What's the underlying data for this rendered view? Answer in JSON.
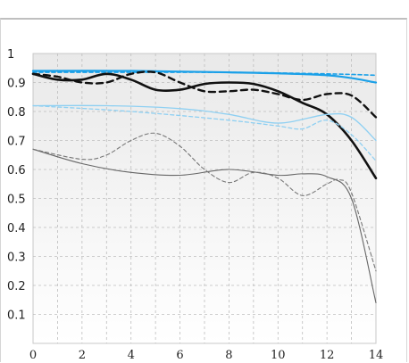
{
  "chart_data": {
    "type": "line",
    "title": "",
    "xlabel": "",
    "ylabel": "",
    "xlim": [
      0,
      14
    ],
    "ylim": [
      0,
      1
    ],
    "x_ticks": [
      "0",
      "2",
      "4",
      "6",
      "8",
      "10",
      "12",
      "14"
    ],
    "y_ticks": [
      "0.1",
      "0.2",
      "0.3",
      "0.4",
      "0.5",
      "0.6",
      "0.7",
      "0.8",
      "0.9",
      "1"
    ],
    "grid": true,
    "series": [
      {
        "color": "#1aa0e8",
        "style": "solid",
        "width": 2.2,
        "points": [
          [
            0,
            0.94
          ],
          [
            4,
            0.94
          ],
          [
            8,
            0.935
          ],
          [
            12,
            0.925
          ],
          [
            14,
            0.9
          ]
        ]
      },
      {
        "color": "#1aa0e8",
        "style": "dashed",
        "width": 1.6,
        "points": [
          [
            0,
            0.935
          ],
          [
            4,
            0.935
          ],
          [
            8,
            0.935
          ],
          [
            12,
            0.93
          ],
          [
            14,
            0.925
          ]
        ]
      },
      {
        "color": "#111111",
        "style": "solid",
        "width": 2.6,
        "points": [
          [
            0,
            0.93
          ],
          [
            1,
            0.91
          ],
          [
            2,
            0.91
          ],
          [
            3,
            0.93
          ],
          [
            4,
            0.91
          ],
          [
            5,
            0.875
          ],
          [
            6,
            0.875
          ],
          [
            7,
            0.895
          ],
          [
            8,
            0.9
          ],
          [
            9,
            0.895
          ],
          [
            10,
            0.87
          ],
          [
            11,
            0.83
          ],
          [
            12,
            0.79
          ],
          [
            13,
            0.7
          ],
          [
            14,
            0.57
          ]
        ]
      },
      {
        "color": "#111111",
        "style": "dashed",
        "width": 2.4,
        "points": [
          [
            0,
            0.93
          ],
          [
            1,
            0.92
          ],
          [
            2,
            0.9
          ],
          [
            3,
            0.9
          ],
          [
            4,
            0.93
          ],
          [
            5,
            0.935
          ],
          [
            6,
            0.9
          ],
          [
            7,
            0.87
          ],
          [
            8,
            0.87
          ],
          [
            9,
            0.875
          ],
          [
            10,
            0.86
          ],
          [
            11,
            0.84
          ],
          [
            12,
            0.86
          ],
          [
            13,
            0.855
          ],
          [
            14,
            0.78
          ]
        ]
      },
      {
        "color": "#8fd0f2",
        "style": "solid",
        "width": 1.3,
        "points": [
          [
            0,
            0.82
          ],
          [
            3,
            0.82
          ],
          [
            6,
            0.81
          ],
          [
            8,
            0.79
          ],
          [
            10,
            0.76
          ],
          [
            12,
            0.79
          ],
          [
            13,
            0.78
          ],
          [
            14,
            0.7
          ]
        ]
      },
      {
        "color": "#8fd0f2",
        "style": "dashed",
        "width": 1.3,
        "points": [
          [
            0,
            0.82
          ],
          [
            4,
            0.8
          ],
          [
            8,
            0.77
          ],
          [
            10,
            0.75
          ],
          [
            11,
            0.74
          ],
          [
            12,
            0.77
          ],
          [
            13,
            0.72
          ],
          [
            14,
            0.63
          ]
        ]
      },
      {
        "color": "#666666",
        "style": "solid",
        "width": 1.1,
        "points": [
          [
            0,
            0.67
          ],
          [
            2,
            0.62
          ],
          [
            4,
            0.59
          ],
          [
            6,
            0.58
          ],
          [
            8,
            0.6
          ],
          [
            10,
            0.58
          ],
          [
            11,
            0.585
          ],
          [
            12,
            0.575
          ],
          [
            13,
            0.5
          ],
          [
            14,
            0.14
          ]
        ]
      },
      {
        "color": "#777777",
        "style": "dashed",
        "width": 1.1,
        "points": [
          [
            0,
            0.67
          ],
          [
            2,
            0.635
          ],
          [
            3,
            0.65
          ],
          [
            4,
            0.7
          ],
          [
            5,
            0.725
          ],
          [
            6,
            0.68
          ],
          [
            7,
            0.6
          ],
          [
            8,
            0.555
          ],
          [
            9,
            0.59
          ],
          [
            10,
            0.57
          ],
          [
            11,
            0.51
          ],
          [
            12,
            0.55
          ],
          [
            12.5,
            0.565
          ],
          [
            13,
            0.52
          ],
          [
            14,
            0.25
          ]
        ]
      }
    ]
  }
}
